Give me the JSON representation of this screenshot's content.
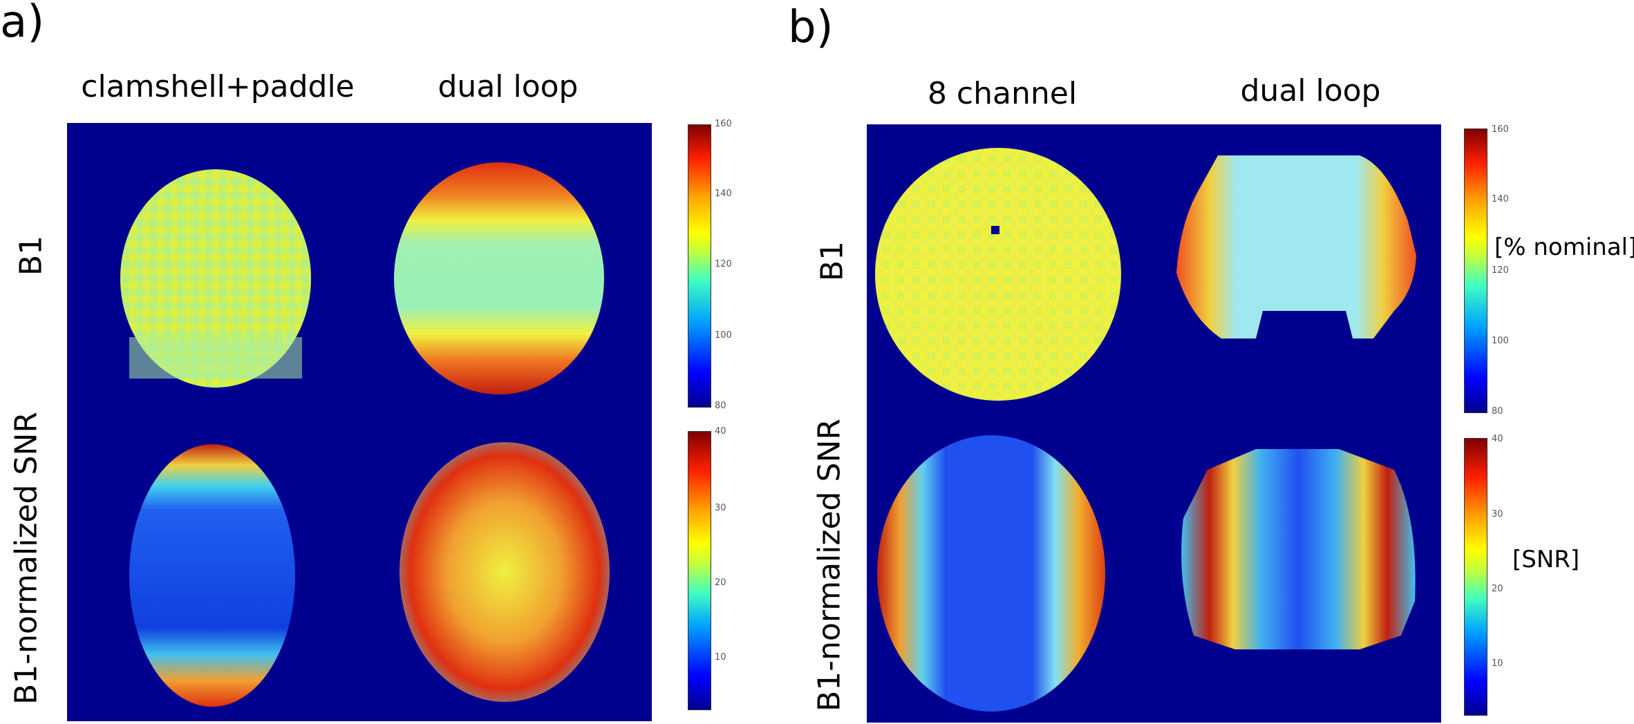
{
  "panel_a": {
    "letter": "a)",
    "columns": [
      "clamshell+paddle",
      "dual loop"
    ],
    "rows": [
      "B1",
      "B1-normalized SNR"
    ]
  },
  "panel_b": {
    "letter": "b)",
    "columns": [
      "8 channel",
      "dual loop"
    ],
    "rows": [
      "B1",
      "B1-normalized SNR"
    ]
  },
  "colorbars": {
    "b1_ticks": [
      "160",
      "140",
      "120",
      "100",
      "80"
    ],
    "snr_ticks": [
      "40",
      "30",
      "20",
      "10"
    ],
    "b1_unit": "[% nominal]",
    "snr_unit": "[SNR]"
  }
}
